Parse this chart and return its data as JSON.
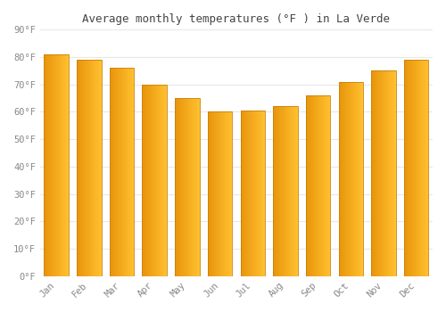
{
  "title": "Average monthly temperatures (°F ) in La Verde",
  "months": [
    "Jan",
    "Feb",
    "Mar",
    "Apr",
    "May",
    "Jun",
    "Jul",
    "Aug",
    "Sep",
    "Oct",
    "Nov",
    "Dec"
  ],
  "values": [
    81,
    79,
    76,
    70,
    65,
    60,
    60.5,
    62,
    66,
    71,
    75,
    79
  ],
  "bar_color_left": "#E8940A",
  "bar_color_right": "#FFB800",
  "bar_edge_color": "#C8820A",
  "ylim": [
    0,
    90
  ],
  "yticks": [
    0,
    10,
    20,
    30,
    40,
    50,
    60,
    70,
    80,
    90
  ],
  "ytick_labels": [
    "0°F",
    "10°F",
    "20°F",
    "30°F",
    "40°F",
    "50°F",
    "60°F",
    "70°F",
    "80°F",
    "90°F"
  ],
  "background_color": "#FFFFFF",
  "grid_color": "#E8E8E8",
  "font_color": "#888888",
  "title_color": "#444444",
  "bar_width": 0.75,
  "title_fontsize": 9,
  "tick_fontsize": 7.5
}
